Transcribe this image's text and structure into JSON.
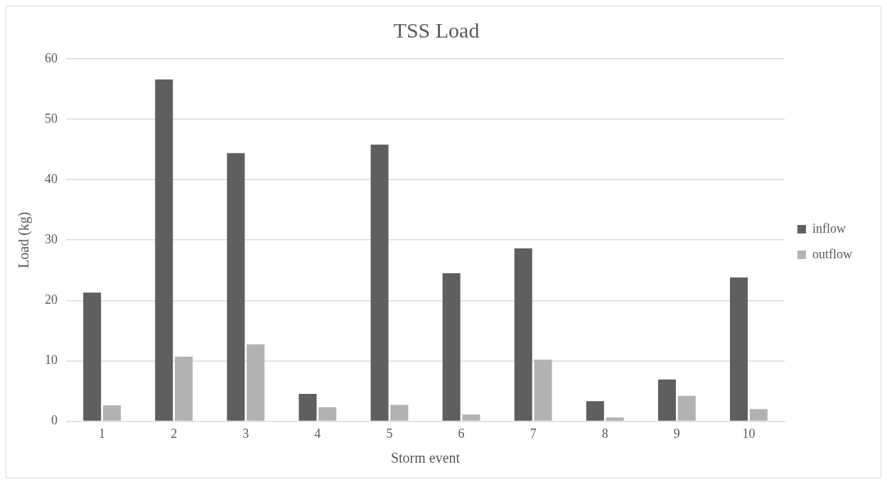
{
  "chart_data": {
    "type": "bar",
    "title": "TSS Load",
    "xlabel": "Storm event",
    "ylabel": "Load (kg)",
    "categories": [
      "1",
      "2",
      "3",
      "4",
      "5",
      "6",
      "7",
      "8",
      "9",
      "10"
    ],
    "series": [
      {
        "name": "inflow",
        "color": "#5f5f5f",
        "values": [
          21.3,
          56.6,
          44.4,
          4.5,
          45.8,
          24.5,
          28.6,
          3.3,
          6.9,
          23.8
        ]
      },
      {
        "name": "outflow",
        "color": "#b2b2b2",
        "values": [
          2.6,
          10.7,
          12.7,
          2.3,
          2.7,
          1.1,
          10.2,
          0.6,
          4.2,
          2.0
        ]
      }
    ],
    "ylim": [
      0,
      60
    ],
    "yticks": [
      0,
      10,
      20,
      30,
      40,
      50,
      60
    ],
    "grid": "y",
    "legend": "right"
  }
}
